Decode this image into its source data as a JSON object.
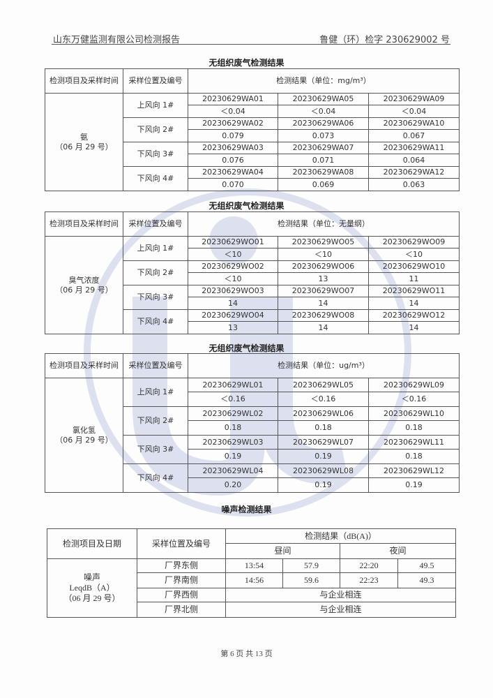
{
  "header": {
    "company": "山东万健监测有限公司检测报告",
    "report_no": "鲁健（环）检字 230629002 号"
  },
  "watermark_color": "#6f7fc0",
  "tables": [
    {
      "title": "无组织废气检测结果",
      "h_item": "检测项目及采样时间",
      "h_pos": "采样位置及编号",
      "h_result": "检测结果（单位：mg/m³）",
      "item": "氨",
      "date": "（06 月 29 号）",
      "rows": [
        {
          "pos": "上风向 1#",
          "ids": [
            "20230629WA01",
            "20230629WA05",
            "20230629WA09"
          ],
          "vals": [
            "＜0.04",
            "＜0.04",
            "＜0.04"
          ]
        },
        {
          "pos": "下风向 2#",
          "ids": [
            "20230629WA02",
            "20230629WA06",
            "20230629WA10"
          ],
          "vals": [
            "0.079",
            "0.073",
            "0.067"
          ]
        },
        {
          "pos": "下风向 3#",
          "ids": [
            "20230629WA03",
            "20230629WA07",
            "20230629WA11"
          ],
          "vals": [
            "0.076",
            "0.071",
            "0.064"
          ]
        },
        {
          "pos": "下风向 4#",
          "ids": [
            "20230629WA04",
            "20230629WA08",
            "20230629WA12"
          ],
          "vals": [
            "0.070",
            "0.069",
            "0.063"
          ]
        }
      ]
    },
    {
      "title": "无组织废气检测结果",
      "h_item": "检测项目及采样时间",
      "h_pos": "采样位置及编号",
      "h_result": "检测结果（单位：无量纲）",
      "item": "臭气浓度",
      "date": "（06 月 29 号）",
      "rows": [
        {
          "pos": "上风向 1#",
          "ids": [
            "20230629WO01",
            "20230629WO05",
            "20230629WO09"
          ],
          "vals": [
            "＜10",
            "＜10",
            "＜10"
          ]
        },
        {
          "pos": "下风向 2#",
          "ids": [
            "20230629WO02",
            "20230629WO06",
            "20230629WO10"
          ],
          "vals": [
            "＜10",
            "13",
            "11"
          ]
        },
        {
          "pos": "下风向 3#",
          "ids": [
            "20230629WO03",
            "20230629WO07",
            "20230629WO11"
          ],
          "vals": [
            "14",
            "14",
            "14"
          ]
        },
        {
          "pos": "下风向 4#",
          "ids": [
            "20230629WO04",
            "20230629WO08",
            "20230629WO12"
          ],
          "vals": [
            "13",
            "14",
            "14"
          ]
        }
      ]
    },
    {
      "title": "无组织废气检测结果",
      "h_item": "检测项目及采样时间",
      "h_pos": "采样位置及编号",
      "h_result": "检测结果（单位：ug/m³）",
      "item": "氯化氢",
      "date": "（06 月 29 号）",
      "rows": [
        {
          "pos": "上风向 1#",
          "ids": [
            "20230629WL01",
            "20230629WL05",
            "20230629WL09"
          ],
          "vals": [
            "＜0.16",
            "＜0.16",
            "＜0.16"
          ]
        },
        {
          "pos": "下风向 2#",
          "ids": [
            "20230629WL02",
            "20230629WL06",
            "20230629WL10"
          ],
          "vals": [
            "0.18",
            "0.18",
            "0.18"
          ]
        },
        {
          "pos": "下风向 3#",
          "ids": [
            "20230629WL03",
            "20230629WL07",
            "20230629WL11"
          ],
          "vals": [
            "0.19",
            "0.19",
            "0.18"
          ]
        },
        {
          "pos": "下风向 4#",
          "ids": [
            "20230629WL04",
            "20230629WL08",
            "20230629WL12"
          ],
          "vals": [
            "0.20",
            "0.19",
            "0.19"
          ]
        }
      ]
    }
  ],
  "noise": {
    "title": "噪声检测结果",
    "h_item": "检测项目及日期",
    "h_pos": "采样位置及编号",
    "h_result": "检测结果（dB(A)）",
    "h_day": "昼间",
    "h_night": "夜间",
    "item": "噪声",
    "unit": "LeqdB（A）",
    "date": "（06 月 29 号）",
    "rows": [
      {
        "pos": "厂界东侧",
        "day_time": "13:54",
        "day_val": "57.9",
        "night_time": "22:20",
        "night_val": "49.5"
      },
      {
        "pos": "厂界南侧",
        "day_time": "14:56",
        "day_val": "59.6",
        "night_time": "22:23",
        "night_val": "49.3"
      },
      {
        "pos": "厂界西侧",
        "note": "与企业相连"
      },
      {
        "pos": "厂界北侧",
        "note": "与企业相连"
      }
    ]
  },
  "footer": "第 6 页 共 13 页"
}
